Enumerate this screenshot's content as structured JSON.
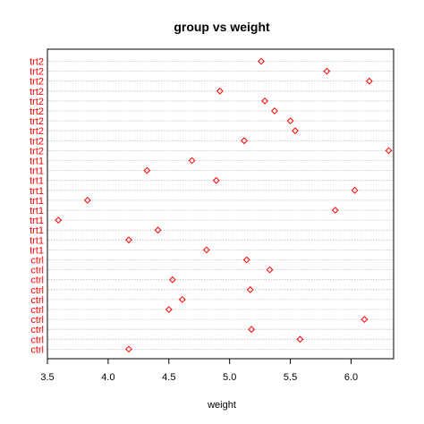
{
  "chart_data": {
    "type": "scatter",
    "title": "group vs weight",
    "xlabel": "weight",
    "ylabel": "",
    "xlim": [
      3.5,
      6.35
    ],
    "x_ticks": [
      "3.5",
      "4.0",
      "4.5",
      "5.0",
      "5.5",
      "6.0"
    ],
    "x_tick_values": [
      3.5,
      4.0,
      4.5,
      5.0,
      5.5,
      6.0
    ],
    "grid": "horizontal dotted guides per row",
    "point_color": "#ff0000",
    "label_color": "#ff0000",
    "rows_top_to_bottom": [
      {
        "label": "trt2",
        "value": 5.26
      },
      {
        "label": "trt2",
        "value": 5.8
      },
      {
        "label": "trt2",
        "value": 6.15
      },
      {
        "label": "trt2",
        "value": 4.92
      },
      {
        "label": "trt2",
        "value": 5.29
      },
      {
        "label": "trt2",
        "value": 5.37
      },
      {
        "label": "trt2",
        "value": 5.5
      },
      {
        "label": "trt2",
        "value": 5.54
      },
      {
        "label": "trt2",
        "value": 5.12
      },
      {
        "label": "trt2",
        "value": 6.31
      },
      {
        "label": "trt1",
        "value": 4.69
      },
      {
        "label": "trt1",
        "value": 4.32
      },
      {
        "label": "trt1",
        "value": 4.89
      },
      {
        "label": "trt1",
        "value": 6.03
      },
      {
        "label": "trt1",
        "value": 3.83
      },
      {
        "label": "trt1",
        "value": 5.87
      },
      {
        "label": "trt1",
        "value": 3.59
      },
      {
        "label": "trt1",
        "value": 4.41
      },
      {
        "label": "trt1",
        "value": 4.17
      },
      {
        "label": "trt1",
        "value": 4.81
      },
      {
        "label": "ctrl",
        "value": 5.14
      },
      {
        "label": "ctrl",
        "value": 5.33
      },
      {
        "label": "ctrl",
        "value": 4.53
      },
      {
        "label": "ctrl",
        "value": 5.17
      },
      {
        "label": "ctrl",
        "value": 4.61
      },
      {
        "label": "ctrl",
        "value": 4.5
      },
      {
        "label": "ctrl",
        "value": 6.11
      },
      {
        "label": "ctrl",
        "value": 5.18
      },
      {
        "label": "ctrl",
        "value": 5.58
      },
      {
        "label": "ctrl",
        "value": 4.17
      }
    ]
  }
}
